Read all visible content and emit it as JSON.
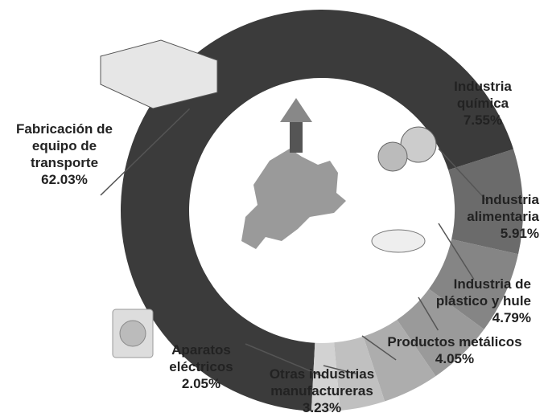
{
  "chart_data": {
    "type": "donut",
    "categories": [
      "Fabricación de equipo de transporte",
      "Industria química",
      "Industria alimentaria",
      "Industria de plástico y hule",
      "Productos metálicos",
      "Otras industrias manufactureras",
      "Aparatos eléctricos"
    ],
    "values": [
      62.03,
      7.55,
      5.91,
      4.79,
      4.05,
      3.23,
      2.05
    ],
    "value_labels": [
      "62.03%",
      "7.55%",
      "5.91%",
      "4.79%",
      "4.05%",
      "3.23%",
      "2.05%"
    ],
    "colors": [
      "#3b3b3b",
      "#6b6b6b",
      "#858585",
      "#9a9a9a",
      "#adadad",
      "#c0c0c0",
      "#d2d2d2"
    ]
  }
}
